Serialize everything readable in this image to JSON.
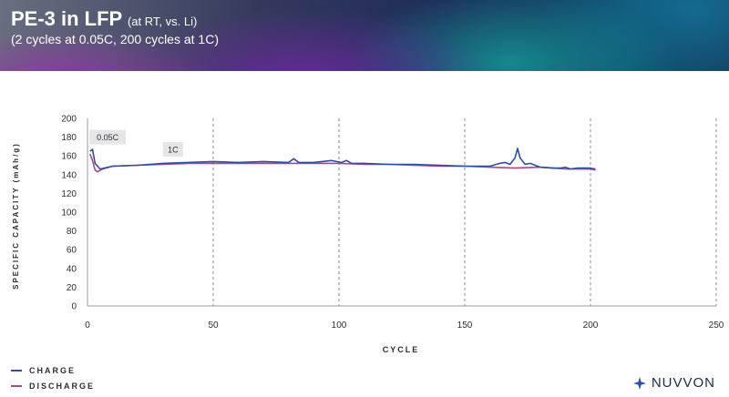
{
  "header": {
    "title": "PE-3 in LFP",
    "title_note": "(at RT, vs. Li)",
    "subtitle": "(2 cycles at 0.05C, 200 cycles at 1C)"
  },
  "brand": {
    "name": "NUVVON",
    "icon": "four-point-star-icon"
  },
  "colors": {
    "charge": "#2d4fa1",
    "discharge": "#a9468f",
    "grid": "#6e6e6e",
    "axis": "#9a9a9a",
    "rate_box": "#e6e6e6"
  },
  "chart_data": {
    "type": "line",
    "xlabel": "CYCLE",
    "ylabel": "SPECIFIC CAPACITY (mAh/g)",
    "xlim": [
      0,
      250
    ],
    "ylim": [
      0,
      200
    ],
    "xticks": [
      0,
      50,
      100,
      150,
      200,
      250
    ],
    "yticks": [
      0,
      20,
      40,
      60,
      80,
      100,
      120,
      140,
      160,
      180,
      200
    ],
    "grid": "vertical dashed",
    "legend_position": "bottom-left",
    "annotations": [
      {
        "text": "0.05C",
        "x": 8,
        "y": 180
      },
      {
        "text": "1C",
        "x": 34,
        "y": 167
      }
    ],
    "series": [
      {
        "name": "CHARGE",
        "x": [
          1,
          2,
          3,
          5,
          10,
          20,
          30,
          40,
          50,
          60,
          70,
          80,
          82,
          84,
          90,
          97,
          99,
          101,
          103,
          105,
          110,
          120,
          130,
          140,
          150,
          160,
          164,
          166,
          168,
          170,
          171,
          172,
          174,
          176,
          178,
          180,
          185,
          188,
          190,
          192,
          195,
          198,
          200,
          202
        ],
        "values": [
          165,
          167,
          152,
          146,
          149,
          150,
          152,
          153,
          154,
          153,
          154,
          153,
          157,
          153,
          153,
          155,
          154,
          153,
          155,
          152,
          152,
          151,
          151,
          150,
          149,
          149,
          152,
          153,
          151,
          158,
          168,
          158,
          151,
          152,
          150,
          148,
          147,
          147,
          148,
          146,
          147,
          147,
          147,
          146
        ]
      },
      {
        "name": "DISCHARGE",
        "x": [
          1,
          2,
          3,
          4,
          6,
          10,
          20,
          30,
          40,
          50,
          60,
          70,
          80,
          90,
          100,
          110,
          120,
          130,
          140,
          150,
          160,
          170,
          180,
          190,
          195,
          200,
          202
        ],
        "values": [
          162,
          155,
          145,
          143,
          146,
          149,
          150,
          151,
          152,
          152,
          152,
          152,
          152,
          152,
          152,
          151,
          151,
          150,
          149,
          149,
          148,
          147,
          148,
          146,
          146,
          146,
          145
        ]
      }
    ]
  }
}
